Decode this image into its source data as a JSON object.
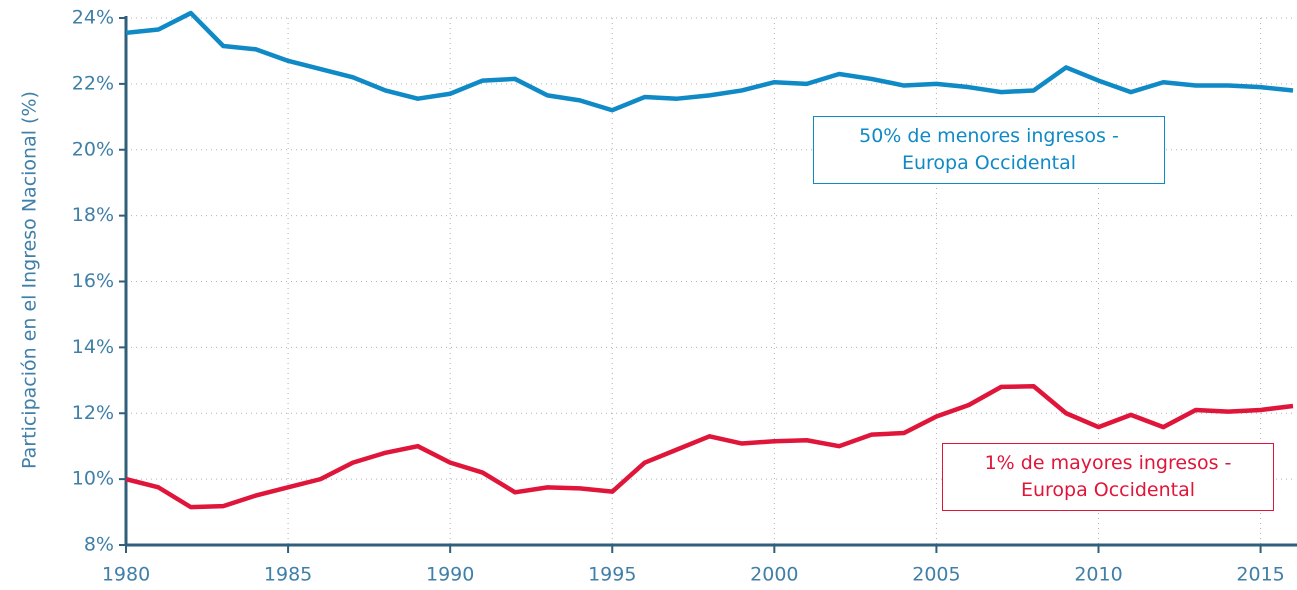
{
  "chart_data": {
    "type": "line",
    "y_label": "Participación en el Ingreso Nacional (%)",
    "x": [
      1980,
      1981,
      1982,
      1983,
      1984,
      1985,
      1986,
      1987,
      1988,
      1989,
      1990,
      1991,
      1992,
      1993,
      1994,
      1995,
      1996,
      1997,
      1998,
      1999,
      2000,
      2001,
      2002,
      2003,
      2004,
      2005,
      2006,
      2007,
      2008,
      2009,
      2010,
      2011,
      2012,
      2013,
      2014,
      2015,
      2016
    ],
    "series": [
      {
        "name": "50% de menores ingresos - Europa Occidental",
        "color": "#0f8ac6",
        "values": [
          23.55,
          23.65,
          24.15,
          23.15,
          23.05,
          22.7,
          22.45,
          22.2,
          21.8,
          21.55,
          21.7,
          22.1,
          22.15,
          21.65,
          21.5,
          21.2,
          21.6,
          21.55,
          21.65,
          21.8,
          22.05,
          22.0,
          22.3,
          22.15,
          21.95,
          22.0,
          21.9,
          21.75,
          21.8,
          22.5,
          22.1,
          21.75,
          22.05,
          21.95,
          21.95,
          21.9,
          21.8
        ]
      },
      {
        "name": "1% de mayores ingresos - Europa Occidental",
        "color": "#e0153a",
        "values": [
          10.0,
          9.75,
          9.15,
          9.18,
          9.5,
          9.75,
          10.0,
          10.5,
          10.8,
          11.0,
          10.5,
          10.2,
          9.6,
          9.75,
          9.72,
          9.62,
          10.5,
          10.9,
          11.3,
          11.08,
          11.15,
          11.18,
          11.0,
          11.35,
          11.4,
          11.9,
          12.25,
          12.8,
          12.82,
          12.0,
          11.58,
          11.95,
          11.58,
          12.1,
          12.05,
          12.1,
          12.22
        ]
      }
    ],
    "xlim": [
      1980,
      2016
    ],
    "xticks": [
      1980,
      1985,
      1990,
      1995,
      2000,
      2005,
      2010,
      2015
    ],
    "ylim": [
      8,
      24
    ],
    "yticks": [
      {
        "value": 8,
        "label": "8%"
      },
      {
        "value": 10,
        "label": "10%"
      },
      {
        "value": 12,
        "label": "12%"
      },
      {
        "value": 14,
        "label": "14%"
      },
      {
        "value": 16,
        "label": "16%"
      },
      {
        "value": 18,
        "label": "18%"
      },
      {
        "value": 20,
        "label": "20%"
      },
      {
        "value": 22,
        "label": "22%"
      },
      {
        "value": 24,
        "label": "24%"
      }
    ],
    "grid": true
  }
}
